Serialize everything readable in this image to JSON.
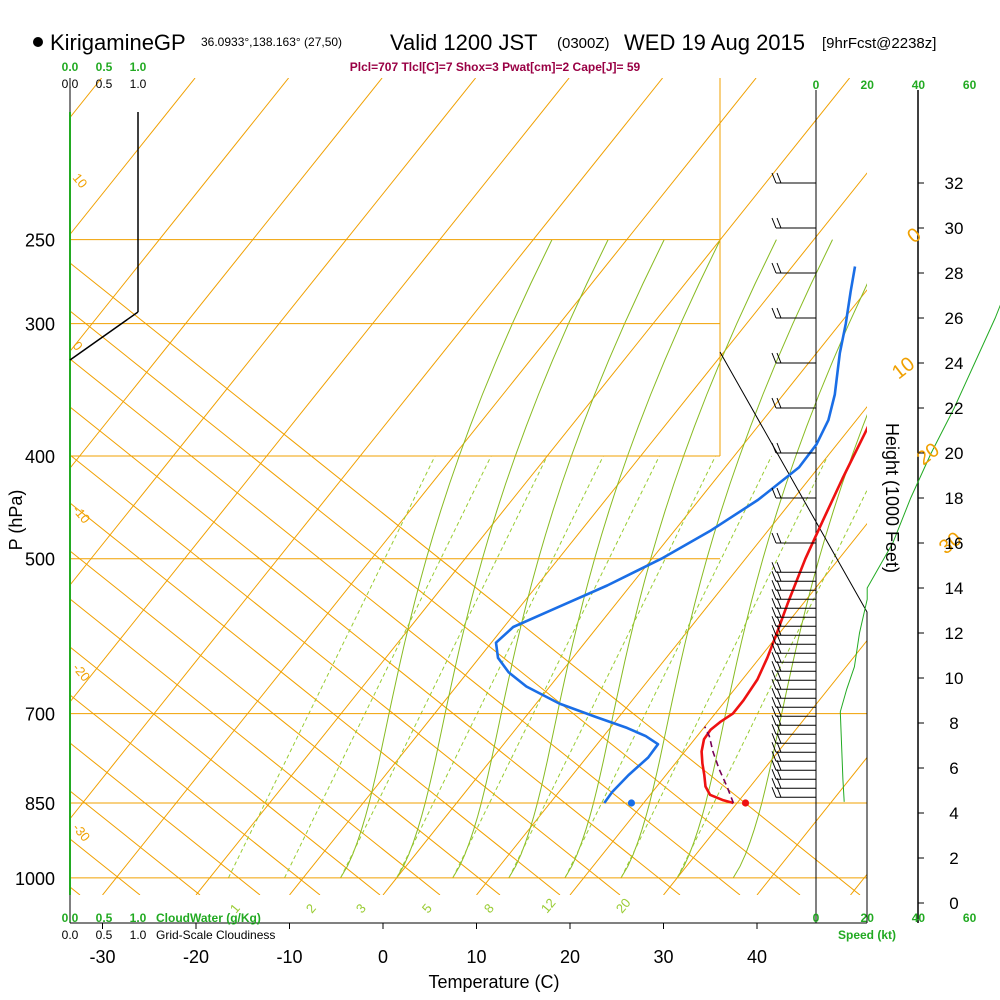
{
  "header": {
    "station": "KirigamineGP",
    "coords": "36.0933°,138.163° (27,50)",
    "valid": "Valid 1200 JST",
    "zulu": "(0300Z)",
    "date": "WED 19 Aug 2015",
    "forecast": "[9hrFcst@2238z]",
    "indices": "Plcl=707 Tlcl[C]=7 Shox=3 Pwat[cm]=2 Cape[J]= 59"
  },
  "colors": {
    "temperature": "#ee1111",
    "dewpoint": "#1a6ee6",
    "isobar": "#f0a000",
    "mixing_ratio": "#99cc33",
    "adiabat": "#88bb22",
    "parcel": "#770055",
    "indices": "#990044",
    "green": "#22aa22"
  },
  "chart_data": {
    "type": "line",
    "title": "Skew-T log-P sounding",
    "xlabel": "Temperature (C)",
    "ylabel": "P (hPa)",
    "right_label": "Height (1000 Feet)",
    "x_ticks": [
      "-30",
      "-20",
      "-10",
      "0",
      "10",
      "20",
      "30",
      "40"
    ],
    "x_tick_values": [
      -30,
      -20,
      -10,
      0,
      10,
      20,
      30,
      40
    ],
    "pressure_labels": [
      "250",
      "300",
      "400",
      "500",
      "700",
      "850",
      "1000"
    ],
    "pressure_levels": [
      250,
      300,
      400,
      500,
      700,
      850,
      1000
    ],
    "height_ticks": [
      "0",
      "2",
      "4",
      "6",
      "8",
      "10",
      "12",
      "14",
      "16",
      "18",
      "20",
      "22",
      "24",
      "26",
      "28",
      "30",
      "32"
    ],
    "height_values": [
      0,
      2,
      4,
      6,
      8,
      10,
      12,
      14,
      16,
      18,
      20,
      22,
      24,
      26,
      28,
      30,
      32
    ],
    "speed_ticks_top": [
      "0",
      "20",
      "40",
      "60"
    ],
    "speed_ticks_bottom": [
      "0",
      "20",
      "40",
      "60"
    ],
    "speed_label": "Speed (kt)",
    "cloud_ticks_top_green": [
      "0.0",
      "0.5",
      "1.0"
    ],
    "cloud_ticks_top_black": [
      "0.0",
      "0.5",
      "1.0"
    ],
    "cloud_ticks_bottom_green": [
      "0.0",
      "0.5",
      "1.0"
    ],
    "cloud_ticks_bottom_black": [
      "0.0",
      "0.5",
      "1.0"
    ],
    "cloudwater_label": "CloudWater (g/Kg)",
    "cloudiness_label": "Grid-Scale Cloudiness",
    "isotherm_labels": [
      "0",
      "10",
      "20",
      "30"
    ],
    "isotherm_label_values": [
      0,
      10,
      20,
      30
    ],
    "adiabat_labels": [
      "10",
      "0",
      "-10",
      "-20",
      "-30"
    ],
    "mixing_labels": [
      "1",
      "2",
      "3",
      "5",
      "8",
      "12",
      "20"
    ],
    "series": [
      {
        "name": "Temperature",
        "values": [
          {
            "p": 850,
            "t": 29.6
          },
          {
            "p": 845,
            "t": 28.3
          },
          {
            "p": 835,
            "t": 26.4
          },
          {
            "p": 820,
            "t": 25.2
          },
          {
            "p": 800,
            "t": 24.1
          },
          {
            "p": 780,
            "t": 22.9
          },
          {
            "p": 760,
            "t": 21.8
          },
          {
            "p": 740,
            "t": 21.0
          },
          {
            "p": 725,
            "t": 20.9
          },
          {
            "p": 712,
            "t": 21.3
          },
          {
            "p": 700,
            "t": 21.9
          },
          {
            "p": 680,
            "t": 21.9
          },
          {
            "p": 650,
            "t": 21.6
          },
          {
            "p": 620,
            "t": 20.8
          },
          {
            "p": 590,
            "t": 19.8
          },
          {
            "p": 550,
            "t": 18.3
          },
          {
            "p": 500,
            "t": 16.4
          },
          {
            "p": 460,
            "t": 15.0
          },
          {
            "p": 420,
            "t": 13.5
          },
          {
            "p": 380,
            "t": 12.0
          },
          {
            "p": 340,
            "t": 10.2
          },
          {
            "p": 300,
            "t": 7.3
          },
          {
            "p": 265,
            "t": 4.0
          }
        ]
      },
      {
        "name": "Dewpoint",
        "values": [
          {
            "p": 850,
            "t": 15.8
          },
          {
            "p": 830,
            "t": 15.7
          },
          {
            "p": 800,
            "t": 16.0
          },
          {
            "p": 770,
            "t": 16.6
          },
          {
            "p": 748,
            "t": 16.5
          },
          {
            "p": 735,
            "t": 14.5
          },
          {
            "p": 722,
            "t": 11.8
          },
          {
            "p": 705,
            "t": 7.5
          },
          {
            "p": 685,
            "t": 2.5
          },
          {
            "p": 660,
            "t": -2.5
          },
          {
            "p": 640,
            "t": -5.6
          },
          {
            "p": 620,
            "t": -8.0
          },
          {
            "p": 600,
            "t": -9.5
          },
          {
            "p": 580,
            "t": -9.0
          },
          {
            "p": 560,
            "t": -6.5
          },
          {
            "p": 530,
            "t": -2.5
          },
          {
            "p": 500,
            "t": 1.0
          },
          {
            "p": 470,
            "t": 3.9
          },
          {
            "p": 440,
            "t": 6.3
          },
          {
            "p": 410,
            "t": 7.9
          },
          {
            "p": 390,
            "t": 7.8
          },
          {
            "p": 370,
            "t": 7.0
          },
          {
            "p": 350,
            "t": 5.5
          },
          {
            "p": 320,
            "t": 2.5
          },
          {
            "p": 300,
            "t": 0.6
          },
          {
            "p": 280,
            "t": -1.6
          },
          {
            "p": 265,
            "t": -3.3
          }
        ]
      },
      {
        "name": "Parcel",
        "values": [
          {
            "p": 850,
            "t": 29.6
          },
          {
            "p": 820,
            "t": 27.5
          },
          {
            "p": 790,
            "t": 25.2
          },
          {
            "p": 760,
            "t": 23.0
          },
          {
            "p": 735,
            "t": 21.3
          },
          {
            "p": 720,
            "t": 20.0
          }
        ]
      }
    ],
    "surface_points": [
      {
        "name": "surface_temperature",
        "p": 850,
        "t": 30.9
      },
      {
        "name": "surface_dewpoint",
        "p": 850,
        "t": 18.7
      }
    ],
    "height_profile": [
      {
        "h": 4.5,
        "speed": 11
      },
      {
        "h": 5.5,
        "speed": 10.5
      },
      {
        "h": 7,
        "speed": 10
      },
      {
        "h": 8.5,
        "speed": 9.5
      },
      {
        "h": 9.5,
        "speed": 12
      },
      {
        "h": 10.5,
        "speed": 15
      },
      {
        "h": 12,
        "speed": 17
      },
      {
        "h": 13.5,
        "speed": 20
      },
      {
        "h": 14,
        "speed": 20
      },
      {
        "h": 16,
        "speed": 30
      },
      {
        "h": 18,
        "speed": 37
      },
      {
        "h": 20,
        "speed": 45
      },
      {
        "h": 22,
        "speed": 54
      },
      {
        "h": 24,
        "speed": 62
      },
      {
        "h": 26,
        "speed": 70
      },
      {
        "h": 28,
        "speed": 77
      },
      {
        "h": 30,
        "speed": 85
      },
      {
        "h": 32.5,
        "speed": 92
      }
    ]
  }
}
